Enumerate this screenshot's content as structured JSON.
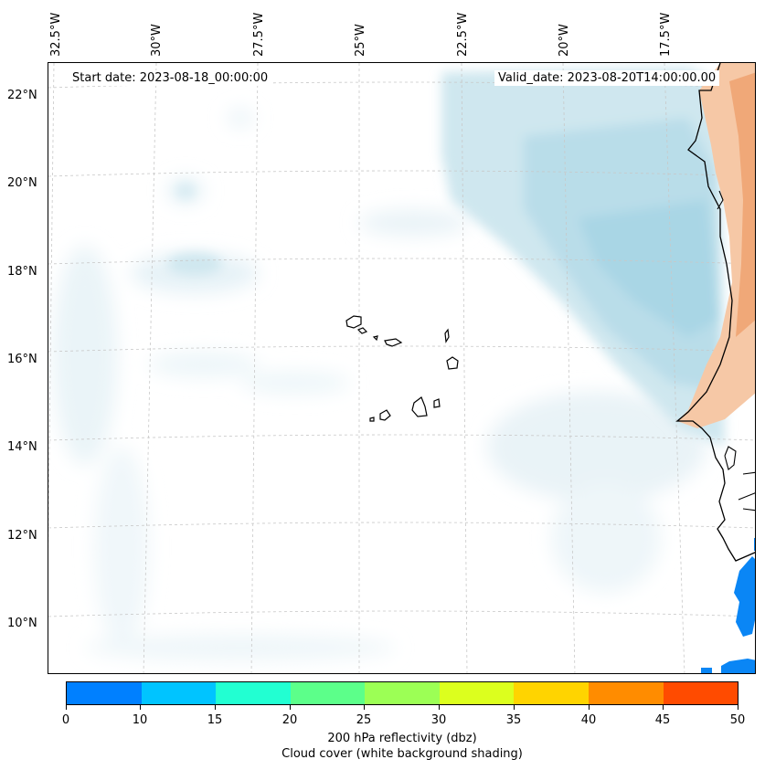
{
  "map": {
    "start_date": "Start date: 2023-08-18_00:00:00",
    "valid_date": "Valid_date: 2023-08-20T14:00:00.00",
    "lon_labels": [
      "32.5°W",
      "30°W",
      "27.5°W",
      "25°W",
      "22.5°W",
      "20°W",
      "17.5°W"
    ],
    "lat_labels": [
      "22°N",
      "20°N",
      "18°N",
      "16°N",
      "14°N",
      "12°N",
      "10°N"
    ],
    "colors": {
      "cloud_light": "#eaf4f8",
      "cloud_mid": "#cfe7ef",
      "cloud_dense": "#a9d6e5",
      "land_warm": "#f6c8a6",
      "land_hot": "#f0a878",
      "reflectivity_blue": "#0a86f5",
      "coast": "#000000",
      "grid": "#c8c8c8"
    }
  },
  "colorbar": {
    "ticks": [
      "0",
      "10",
      "15",
      "20",
      "25",
      "30",
      "35",
      "40",
      "45",
      "50"
    ],
    "colors": [
      "#0080ff",
      "#00c4ff",
      "#22ffd2",
      "#5cff8a",
      "#9cff55",
      "#dcff1e",
      "#ffd400",
      "#ff8c00",
      "#ff4b00"
    ],
    "label": "200 hPa reflectivity (dbz)",
    "sublabel": "Cloud cover (white background shading)"
  }
}
